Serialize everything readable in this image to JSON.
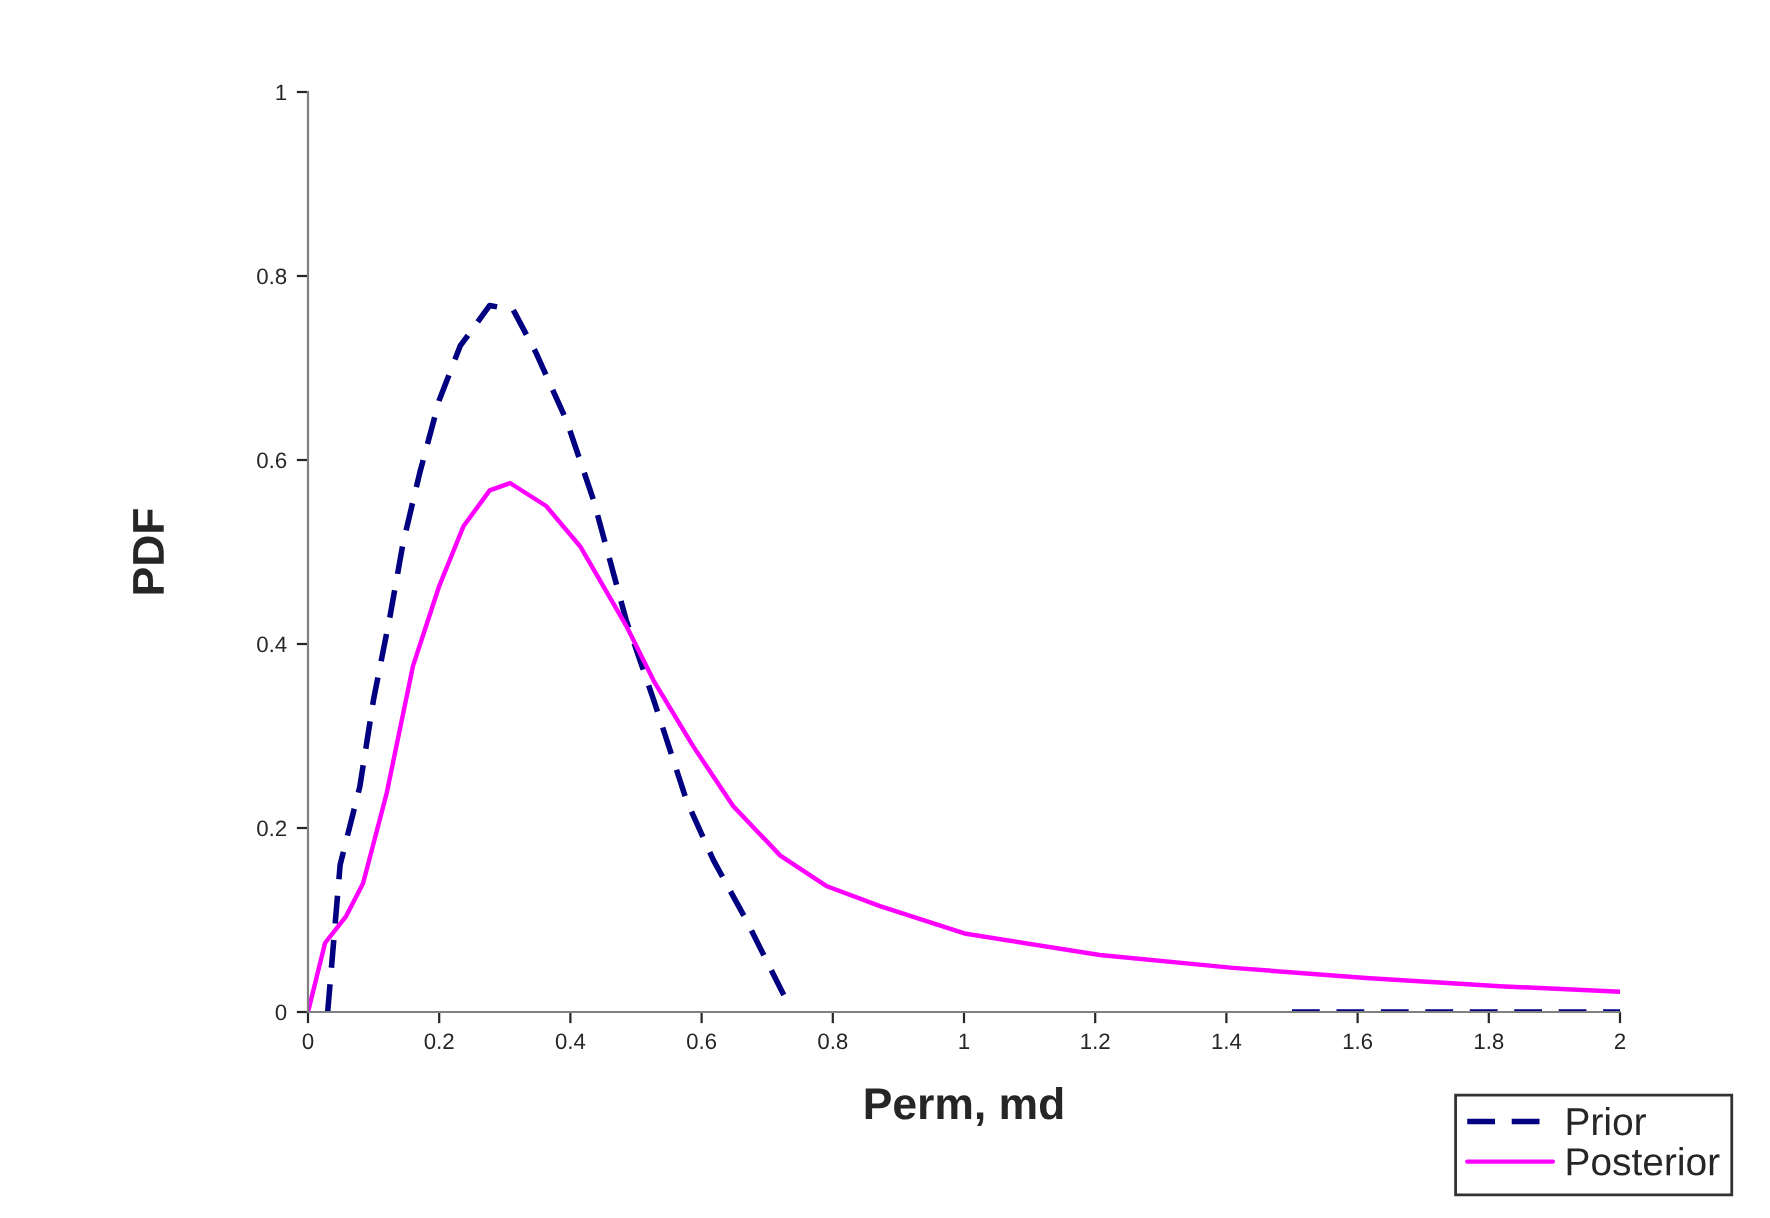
{
  "chart_data": {
    "type": "line",
    "xlabel": "Perm, md",
    "ylabel": "PDF",
    "xlim": [
      0,
      2
    ],
    "ylim": [
      0,
      1
    ],
    "xticks": [
      0,
      0.2,
      0.4,
      0.6,
      0.8,
      1,
      1.2,
      1.4,
      1.6,
      1.8,
      2
    ],
    "yticks": [
      0,
      0.2,
      0.4,
      0.6,
      0.8,
      1
    ],
    "grid": false,
    "legend": "bottom right",
    "marker": "none",
    "series": [
      {
        "name": "Prior",
        "color": "#000080",
        "line_style": "dashed",
        "x": [
          0.03,
          0.049,
          0.079,
          0.1,
          0.125,
          0.145,
          0.17,
          0.2,
          0.232,
          0.277,
          0.313,
          0.348,
          0.394,
          0.435,
          0.485,
          0.527,
          0.577,
          0.618,
          0.668,
          0.729,
          1.1,
          1.5,
          1.75,
          2
        ],
        "values": [
          0,
          0.16,
          0.245,
          0.34,
          0.43,
          0.51,
          0.585,
          0.665,
          0.724,
          0.768,
          0.763,
          0.716,
          0.643,
          0.557,
          0.426,
          0.339,
          0.23,
          0.165,
          0.1,
          0.013,
          null,
          0,
          0,
          0
        ]
      },
      {
        "name": "Posterior",
        "color": "#ff00ff",
        "line_style": "solid",
        "x": [
          0,
          0.026,
          0.058,
          0.084,
          0.12,
          0.16,
          0.2,
          0.237,
          0.277,
          0.308,
          0.363,
          0.415,
          0.485,
          0.527,
          0.587,
          0.648,
          0.72,
          0.79,
          0.872,
          1.003,
          1.207,
          1.41,
          1.613,
          1.817,
          2
        ],
        "values": [
          0,
          0.075,
          0.104,
          0.14,
          0.238,
          0.376,
          0.463,
          0.528,
          0.567,
          0.575,
          0.55,
          0.506,
          0.42,
          0.36,
          0.289,
          0.224,
          0.17,
          0.137,
          0.115,
          0.085,
          0.062,
          0.048,
          0.037,
          0.028,
          0.022
        ]
      }
    ]
  }
}
